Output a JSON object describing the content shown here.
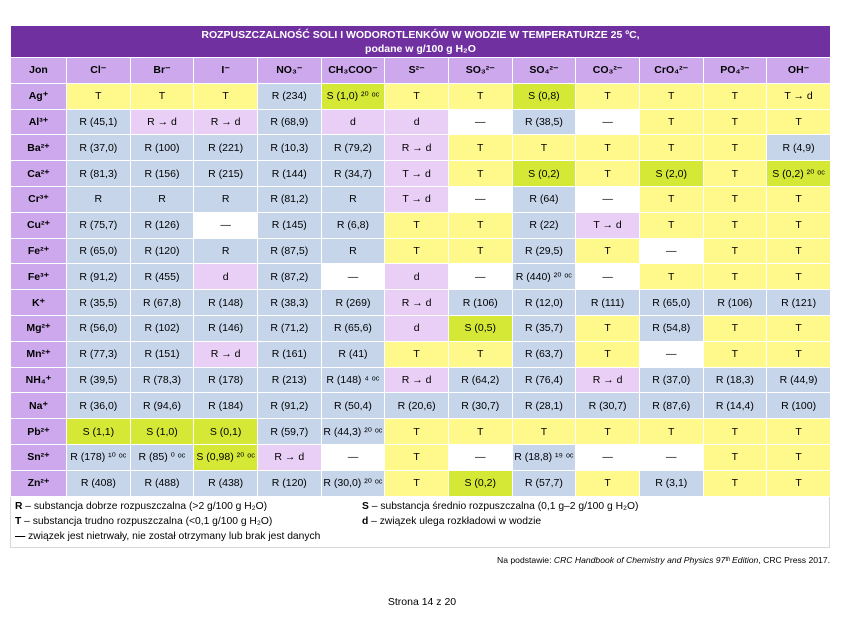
{
  "title_line1": "ROZPUSZCZALNOŚĆ SOLI I WODOROTLENKÓW W WODZIE W TEMPERATURZE 25 ºC,",
  "title_line2": "podane w g/100 g H₂O",
  "columns": [
    "Jon",
    "Cl⁻",
    "Br⁻",
    "I⁻",
    "NO₃⁻",
    "CH₃COO⁻",
    "S²⁻",
    "SO₃²⁻",
    "SO₄²⁻",
    "CO₃²⁻",
    "CrO₄²⁻",
    "PO₄³⁻",
    "OH⁻"
  ],
  "rows": [
    {
      "ion": "Ag⁺",
      "cells": [
        [
          "T",
          "T"
        ],
        [
          "T",
          "T"
        ],
        [
          "T",
          "T"
        ],
        [
          "R",
          "R (234)"
        ],
        [
          "S",
          "S (1,0) ²⁰ ᵒᶜ"
        ],
        [
          "T",
          "T"
        ],
        [
          "T",
          "T"
        ],
        [
          "S",
          "S (0,8)"
        ],
        [
          "T",
          "T"
        ],
        [
          "T",
          "T"
        ],
        [
          "T",
          "T"
        ],
        [
          "T",
          "T → d"
        ]
      ]
    },
    {
      "ion": "Al³⁺",
      "cells": [
        [
          "R",
          "R (45,1)"
        ],
        [
          "d",
          "R → d"
        ],
        [
          "d",
          "R → d"
        ],
        [
          "R",
          "R (68,9)"
        ],
        [
          "d",
          "d"
        ],
        [
          "d",
          "d"
        ],
        [
          "N",
          "—"
        ],
        [
          "R",
          "R (38,5)"
        ],
        [
          "N",
          "—"
        ],
        [
          "T",
          "T"
        ],
        [
          "T",
          "T"
        ],
        [
          "T",
          "T"
        ]
      ]
    },
    {
      "ion": "Ba²⁺",
      "cells": [
        [
          "R",
          "R (37,0)"
        ],
        [
          "R",
          "R (100)"
        ],
        [
          "R",
          "R (221)"
        ],
        [
          "R",
          "R (10,3)"
        ],
        [
          "R",
          "R (79,2)"
        ],
        [
          "d",
          "R → d"
        ],
        [
          "T",
          "T"
        ],
        [
          "T",
          "T"
        ],
        [
          "T",
          "T"
        ],
        [
          "T",
          "T"
        ],
        [
          "T",
          "T"
        ],
        [
          "R",
          "R (4,9)"
        ]
      ]
    },
    {
      "ion": "Ca²⁺",
      "cells": [
        [
          "R",
          "R (81,3)"
        ],
        [
          "R",
          "R (156)"
        ],
        [
          "R",
          "R (215)"
        ],
        [
          "R",
          "R (144)"
        ],
        [
          "R",
          "R (34,7)"
        ],
        [
          "d",
          "T → d"
        ],
        [
          "T",
          "T"
        ],
        [
          "S",
          "S (0,2)"
        ],
        [
          "T",
          "T"
        ],
        [
          "S",
          "S (2,0)"
        ],
        [
          "T",
          "T"
        ],
        [
          "S",
          "S (0,2) ²⁰ ᵒᶜ"
        ]
      ]
    },
    {
      "ion": "Cr³⁺",
      "cells": [
        [
          "R",
          "R"
        ],
        [
          "R",
          "R"
        ],
        [
          "R",
          "R"
        ],
        [
          "R",
          "R (81,2)"
        ],
        [
          "R",
          "R"
        ],
        [
          "d",
          "T → d"
        ],
        [
          "N",
          "—"
        ],
        [
          "R",
          "R (64)"
        ],
        [
          "N",
          "—"
        ],
        [
          "T",
          "T"
        ],
        [
          "T",
          "T"
        ],
        [
          "T",
          "T"
        ]
      ]
    },
    {
      "ion": "Cu²⁺",
      "cells": [
        [
          "R",
          "R (75,7)"
        ],
        [
          "R",
          "R (126)"
        ],
        [
          "N",
          "—"
        ],
        [
          "R",
          "R (145)"
        ],
        [
          "R",
          "R (6,8)"
        ],
        [
          "T",
          "T"
        ],
        [
          "T",
          "T"
        ],
        [
          "R",
          "R (22)"
        ],
        [
          "d",
          "T → d"
        ],
        [
          "T",
          "T"
        ],
        [
          "T",
          "T"
        ],
        [
          "T",
          "T"
        ]
      ]
    },
    {
      "ion": "Fe²⁺",
      "cells": [
        [
          "R",
          "R (65,0)"
        ],
        [
          "R",
          "R (120)"
        ],
        [
          "R",
          "R"
        ],
        [
          "R",
          "R (87,5)"
        ],
        [
          "R",
          "R"
        ],
        [
          "T",
          "T"
        ],
        [
          "T",
          "T"
        ],
        [
          "R",
          "R (29,5)"
        ],
        [
          "T",
          "T"
        ],
        [
          "N",
          "—"
        ],
        [
          "T",
          "T"
        ],
        [
          "T",
          "T"
        ]
      ]
    },
    {
      "ion": "Fe³⁺",
      "cells": [
        [
          "R",
          "R (91,2)"
        ],
        [
          "R",
          "R (455)"
        ],
        [
          "d",
          "d"
        ],
        [
          "R",
          "R (87,2)"
        ],
        [
          "N",
          "—"
        ],
        [
          "d",
          "d"
        ],
        [
          "N",
          "—"
        ],
        [
          "R",
          "R (440) ²⁰ ᵒᶜ"
        ],
        [
          "N",
          "—"
        ],
        [
          "T",
          "T"
        ],
        [
          "T",
          "T"
        ],
        [
          "T",
          "T"
        ]
      ]
    },
    {
      "ion": "K⁺",
      "cells": [
        [
          "R",
          "R (35,5)"
        ],
        [
          "R",
          "R (67,8)"
        ],
        [
          "R",
          "R (148)"
        ],
        [
          "R",
          "R (38,3)"
        ],
        [
          "R",
          "R (269)"
        ],
        [
          "d",
          "R → d"
        ],
        [
          "R",
          "R (106)"
        ],
        [
          "R",
          "R (12,0)"
        ],
        [
          "R",
          "R (111)"
        ],
        [
          "R",
          "R (65,0)"
        ],
        [
          "R",
          "R (106)"
        ],
        [
          "R",
          "R (121)"
        ]
      ]
    },
    {
      "ion": "Mg²⁺",
      "cells": [
        [
          "R",
          "R (56,0)"
        ],
        [
          "R",
          "R (102)"
        ],
        [
          "R",
          "R (146)"
        ],
        [
          "R",
          "R (71,2)"
        ],
        [
          "R",
          "R (65,6)"
        ],
        [
          "d",
          "d"
        ],
        [
          "S",
          "S (0,5)"
        ],
        [
          "R",
          "R (35,7)"
        ],
        [
          "T",
          "T"
        ],
        [
          "R",
          "R (54,8)"
        ],
        [
          "T",
          "T"
        ],
        [
          "T",
          "T"
        ]
      ]
    },
    {
      "ion": "Mn²⁺",
      "cells": [
        [
          "R",
          "R (77,3)"
        ],
        [
          "R",
          "R (151)"
        ],
        [
          "d",
          "R → d"
        ],
        [
          "R",
          "R (161)"
        ],
        [
          "R",
          "R (41)"
        ],
        [
          "T",
          "T"
        ],
        [
          "T",
          "T"
        ],
        [
          "R",
          "R (63,7)"
        ],
        [
          "T",
          "T"
        ],
        [
          "N",
          "—"
        ],
        [
          "T",
          "T"
        ],
        [
          "T",
          "T"
        ]
      ]
    },
    {
      "ion": "NH₄⁺",
      "cells": [
        [
          "R",
          "R (39,5)"
        ],
        [
          "R",
          "R (78,3)"
        ],
        [
          "R",
          "R (178)"
        ],
        [
          "R",
          "R (213)"
        ],
        [
          "R",
          "R (148) ⁴ ᵒᶜ"
        ],
        [
          "d",
          "R → d"
        ],
        [
          "R",
          "R (64,2)"
        ],
        [
          "R",
          "R (76,4)"
        ],
        [
          "d",
          "R → d"
        ],
        [
          "R",
          "R (37,0)"
        ],
        [
          "R",
          "R (18,3)"
        ],
        [
          "R",
          "R (44,9)"
        ]
      ]
    },
    {
      "ion": "Na⁺",
      "cells": [
        [
          "R",
          "R (36,0)"
        ],
        [
          "R",
          "R (94,6)"
        ],
        [
          "R",
          "R (184)"
        ],
        [
          "R",
          "R (91,2)"
        ],
        [
          "R",
          "R (50,4)"
        ],
        [
          "R",
          "R (20,6)"
        ],
        [
          "R",
          "R (30,7)"
        ],
        [
          "R",
          "R (28,1)"
        ],
        [
          "R",
          "R (30,7)"
        ],
        [
          "R",
          "R (87,6)"
        ],
        [
          "R",
          "R (14,4)"
        ],
        [
          "R",
          "R (100)"
        ]
      ]
    },
    {
      "ion": "Pb²⁺",
      "cells": [
        [
          "S",
          "S (1,1)"
        ],
        [
          "S",
          "S (1,0)"
        ],
        [
          "S",
          "S (0,1)"
        ],
        [
          "R",
          "R (59,7)"
        ],
        [
          "R",
          "R (44,3) ²⁰ ᵒᶜ"
        ],
        [
          "T",
          "T"
        ],
        [
          "T",
          "T"
        ],
        [
          "T",
          "T"
        ],
        [
          "T",
          "T"
        ],
        [
          "T",
          "T"
        ],
        [
          "T",
          "T"
        ],
        [
          "T",
          "T"
        ]
      ]
    },
    {
      "ion": "Sn²⁺",
      "cells": [
        [
          "R",
          "R (178) ¹⁰ ᵒᶜ"
        ],
        [
          "R",
          "R (85) ⁰ ᵒᶜ"
        ],
        [
          "S",
          "S (0,98) ²⁰ ᵒᶜ"
        ],
        [
          "d",
          "R → d"
        ],
        [
          "N",
          "—"
        ],
        [
          "T",
          "T"
        ],
        [
          "N",
          "—"
        ],
        [
          "R",
          "R (18,8) ¹⁹ ᵒᶜ"
        ],
        [
          "N",
          "—"
        ],
        [
          "N",
          "—"
        ],
        [
          "T",
          "T"
        ],
        [
          "T",
          "T"
        ]
      ]
    },
    {
      "ion": "Zn²⁺",
      "cells": [
        [
          "R",
          "R (408)"
        ],
        [
          "R",
          "R (488)"
        ],
        [
          "R",
          "R (438)"
        ],
        [
          "R",
          "R (120)"
        ],
        [
          "R",
          "R (30,0) ²⁰ ᵒᶜ"
        ],
        [
          "T",
          "T"
        ],
        [
          "S",
          "S (0,2)"
        ],
        [
          "R",
          "R (57,7)"
        ],
        [
          "T",
          "T"
        ],
        [
          "R",
          "R (3,1)"
        ],
        [
          "T",
          "T"
        ],
        [
          "T",
          "T"
        ]
      ]
    }
  ],
  "legend": {
    "r_key": "R",
    "r_text": " – substancja dobrze rozpuszczalna (>2 g/100 g H₂O)",
    "s_key": "S",
    "s_text": " – substancja średnio rozpuszczalna (0,1 g–2 g/100 g H₂O)",
    "t_key": "T",
    "t_text": " – substancja trudno rozpuszczalna (<0,1 g/100 g H₂O)",
    "d_key": "d",
    "d_text": " – związek ulega rozkładowi w wodzie",
    "dash_key": "—",
    "dash_text": " związek jest nietrwały, nie został otrzymany lub brak jest danych"
  },
  "source": {
    "prefix": "Na podstawie: ",
    "book": "CRC Handbook of Chemistry and Physics 97ᵗʰ Edition",
    "suffix": ", CRC Press 2017."
  },
  "footer": "Strona 14 z 20",
  "colors": {
    "R": "#c6d5ea",
    "T": "#fff88a",
    "S": "#d4e835",
    "d": "#e9cff5",
    "header": "#cda8ec",
    "title": "#7030a0"
  }
}
